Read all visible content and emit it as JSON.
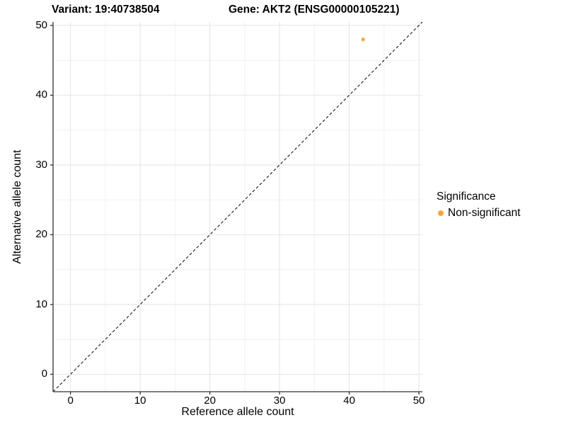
{
  "chart_data": {
    "type": "scatter",
    "titles": [
      "Variant: 19:40738504",
      "Gene: AKT2 (ENSG00000105221)"
    ],
    "xlabel": "Reference allele count",
    "ylabel": "Alternative allele count",
    "xlim": [
      -2.5,
      50.5
    ],
    "ylim": [
      -2.5,
      50.5
    ],
    "xticks": [
      0,
      10,
      20,
      30,
      40,
      50
    ],
    "yticks": [
      0,
      10,
      20,
      30,
      40,
      50
    ],
    "xminor": [
      5,
      15,
      25,
      35,
      45
    ],
    "yminor": [
      5,
      15,
      25,
      35,
      45
    ],
    "grid": "major and minor gridlines, no top/right border",
    "identity_line": {
      "slope": 1,
      "intercept": 0,
      "style": "dashed",
      "color": "#000000"
    },
    "series": [
      {
        "name": "Non-significant",
        "color": "#FAA43A",
        "points": [
          {
            "x": 42,
            "y": 48
          }
        ]
      }
    ],
    "legend": {
      "title": "Significance",
      "position": "right",
      "items": [
        {
          "label": "Non-significant",
          "color": "#FAA43A"
        }
      ]
    }
  },
  "styles": {
    "major_grid_color": "#E4E4E4",
    "minor_grid_color": "#F1F1F1",
    "axis_line_color": "#333333",
    "tick_color": "#333333",
    "background_color": "#FFFFFF"
  }
}
